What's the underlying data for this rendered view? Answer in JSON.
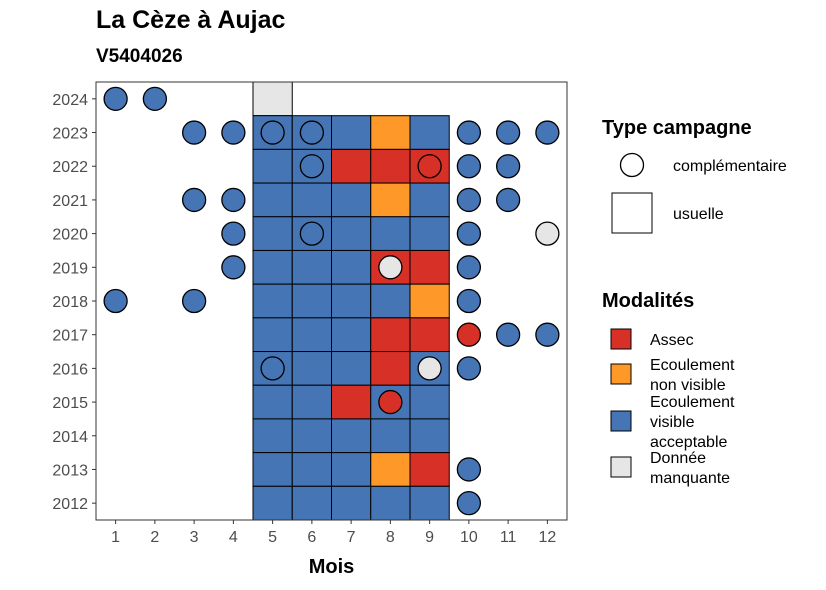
{
  "chart_data": {
    "type": "heatmap",
    "title": "La Cèze à Aujac",
    "subtitle": "V5404026",
    "xlabel": "Mois",
    "ylabel": "",
    "x_ticks": [
      1,
      2,
      3,
      4,
      5,
      6,
      7,
      8,
      9,
      10,
      11,
      12
    ],
    "y_ticks": [
      2012,
      2013,
      2014,
      2015,
      2016,
      2017,
      2018,
      2019,
      2020,
      2021,
      2022,
      2023,
      2024
    ],
    "xlim": [
      0.5,
      12.5
    ],
    "ylim": [
      2011.5,
      2024.5
    ],
    "colors": {
      "Assec": "#d73027",
      "Ecoulement non visible": "#fe9929",
      "Ecoulement visible acceptable": "#4575b4",
      "Donnée manquante": "#e6e6e6"
    },
    "legend_campagne": {
      "title": "Type campagne",
      "items": [
        {
          "label": "complémentaire",
          "shape": "circle"
        },
        {
          "label": "usuelle",
          "shape": "square"
        }
      ]
    },
    "legend_modalites": {
      "title": "Modalités",
      "items": [
        {
          "key": "Assec",
          "lines": [
            "Assec"
          ]
        },
        {
          "key": "Ecoulement non visible",
          "lines": [
            "Ecoulement",
            "non visible"
          ]
        },
        {
          "key": "Ecoulement visible acceptable",
          "lines": [
            "Ecoulement",
            "visible",
            "acceptable"
          ]
        },
        {
          "key": "Donnée manquante",
          "lines": [
            "Donnée",
            "manquante"
          ]
        }
      ]
    },
    "usuelle": [
      {
        "year": 2024,
        "months": {
          "5": "Donnée manquante"
        }
      },
      {
        "year": 2023,
        "months": {
          "5": "Ecoulement visible acceptable",
          "6": "Ecoulement visible acceptable",
          "7": "Ecoulement visible acceptable",
          "8": "Ecoulement non visible",
          "9": "Ecoulement visible acceptable"
        }
      },
      {
        "year": 2022,
        "months": {
          "5": "Ecoulement visible acceptable",
          "6": "Ecoulement visible acceptable",
          "7": "Assec",
          "8": "Assec",
          "9": "Assec"
        }
      },
      {
        "year": 2021,
        "months": {
          "5": "Ecoulement visible acceptable",
          "6": "Ecoulement visible acceptable",
          "7": "Ecoulement visible acceptable",
          "8": "Ecoulement non visible",
          "9": "Ecoulement visible acceptable"
        }
      },
      {
        "year": 2020,
        "months": {
          "5": "Ecoulement visible acceptable",
          "6": "Ecoulement visible acceptable",
          "7": "Ecoulement visible acceptable",
          "8": "Ecoulement visible acceptable",
          "9": "Ecoulement visible acceptable"
        }
      },
      {
        "year": 2019,
        "months": {
          "5": "Ecoulement visible acceptable",
          "6": "Ecoulement visible acceptable",
          "7": "Ecoulement visible acceptable",
          "8": "Assec",
          "9": "Assec"
        }
      },
      {
        "year": 2018,
        "months": {
          "5": "Ecoulement visible acceptable",
          "6": "Ecoulement visible acceptable",
          "7": "Ecoulement visible acceptable",
          "8": "Ecoulement visible acceptable",
          "9": "Ecoulement non visible"
        }
      },
      {
        "year": 2017,
        "months": {
          "5": "Ecoulement visible acceptable",
          "6": "Ecoulement visible acceptable",
          "7": "Ecoulement visible acceptable",
          "8": "Assec",
          "9": "Assec"
        }
      },
      {
        "year": 2016,
        "months": {
          "5": "Ecoulement visible acceptable",
          "6": "Ecoulement visible acceptable",
          "7": "Ecoulement visible acceptable",
          "8": "Assec",
          "9": "Ecoulement visible acceptable"
        }
      },
      {
        "year": 2015,
        "months": {
          "5": "Ecoulement visible acceptable",
          "6": "Ecoulement visible acceptable",
          "7": "Assec",
          "8": "Ecoulement visible acceptable",
          "9": "Ecoulement visible acceptable"
        }
      },
      {
        "year": 2014,
        "months": {
          "5": "Ecoulement visible acceptable",
          "6": "Ecoulement visible acceptable",
          "7": "Ecoulement visible acceptable",
          "8": "Ecoulement visible acceptable",
          "9": "Ecoulement visible acceptable"
        }
      },
      {
        "year": 2013,
        "months": {
          "5": "Ecoulement visible acceptable",
          "6": "Ecoulement visible acceptable",
          "7": "Ecoulement visible acceptable",
          "8": "Ecoulement non visible",
          "9": "Assec"
        }
      },
      {
        "year": 2012,
        "months": {
          "5": "Ecoulement visible acceptable",
          "6": "Ecoulement visible acceptable",
          "7": "Ecoulement visible acceptable",
          "8": "Ecoulement visible acceptable",
          "9": "Ecoulement visible acceptable"
        }
      }
    ],
    "complementaire": [
      {
        "year": 2024,
        "months": {
          "1": "Ecoulement visible acceptable",
          "2": "Ecoulement visible acceptable"
        }
      },
      {
        "year": 2023,
        "months": {
          "3": "Ecoulement visible acceptable",
          "4": "Ecoulement visible acceptable",
          "5": "Ecoulement visible acceptable",
          "6": "Ecoulement visible acceptable",
          "10": "Ecoulement visible acceptable",
          "11": "Ecoulement visible acceptable",
          "12": "Ecoulement visible acceptable"
        }
      },
      {
        "year": 2022,
        "months": {
          "6": "Ecoulement visible acceptable",
          "9": "Assec",
          "10": "Ecoulement visible acceptable",
          "11": "Ecoulement visible acceptable"
        }
      },
      {
        "year": 2021,
        "months": {
          "3": "Ecoulement visible acceptable",
          "4": "Ecoulement visible acceptable",
          "10": "Ecoulement visible acceptable",
          "11": "Ecoulement visible acceptable"
        }
      },
      {
        "year": 2020,
        "months": {
          "4": "Ecoulement visible acceptable",
          "6": "Ecoulement visible acceptable",
          "10": "Ecoulement visible acceptable",
          "12": "Donnée manquante"
        }
      },
      {
        "year": 2019,
        "months": {
          "4": "Ecoulement visible acceptable",
          "8": "Donnée manquante",
          "10": "Ecoulement visible acceptable"
        }
      },
      {
        "year": 2018,
        "months": {
          "1": "Ecoulement visible acceptable",
          "3": "Ecoulement visible acceptable",
          "10": "Ecoulement visible acceptable"
        }
      },
      {
        "year": 2017,
        "months": {
          "10": "Assec",
          "11": "Ecoulement visible acceptable",
          "12": "Ecoulement visible acceptable"
        }
      },
      {
        "year": 2016,
        "months": {
          "5": "Ecoulement visible acceptable",
          "9": "Donnée manquante",
          "10": "Ecoulement visible acceptable"
        }
      },
      {
        "year": 2015,
        "months": {
          "8": "Assec"
        }
      },
      {
        "year": 2013,
        "months": {
          "10": "Ecoulement visible acceptable"
        }
      },
      {
        "year": 2012,
        "months": {
          "10": "Ecoulement visible acceptable"
        }
      }
    ]
  }
}
